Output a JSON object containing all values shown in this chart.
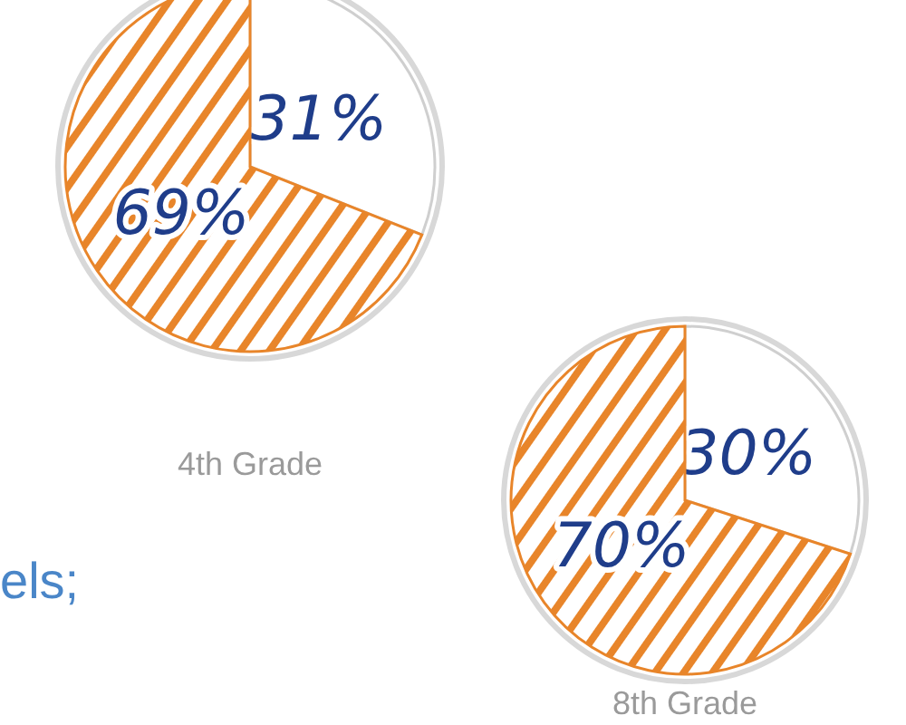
{
  "chart_data": [
    {
      "type": "pie",
      "title": "4th Grade",
      "categories": [
        null,
        null
      ],
      "values": [
        31,
        69
      ],
      "colors": [
        "#ffffff",
        "#e8852a"
      ],
      "value_labels": [
        "31%",
        "69%"
      ],
      "annotations": [
        "els;"
      ]
    },
    {
      "type": "pie",
      "title": "8th Grade",
      "categories": [
        null,
        null
      ],
      "values": [
        30,
        70
      ],
      "colors": [
        "#ffffff",
        "#e8852a"
      ],
      "value_labels": [
        "30%",
        "70%"
      ]
    }
  ]
}
